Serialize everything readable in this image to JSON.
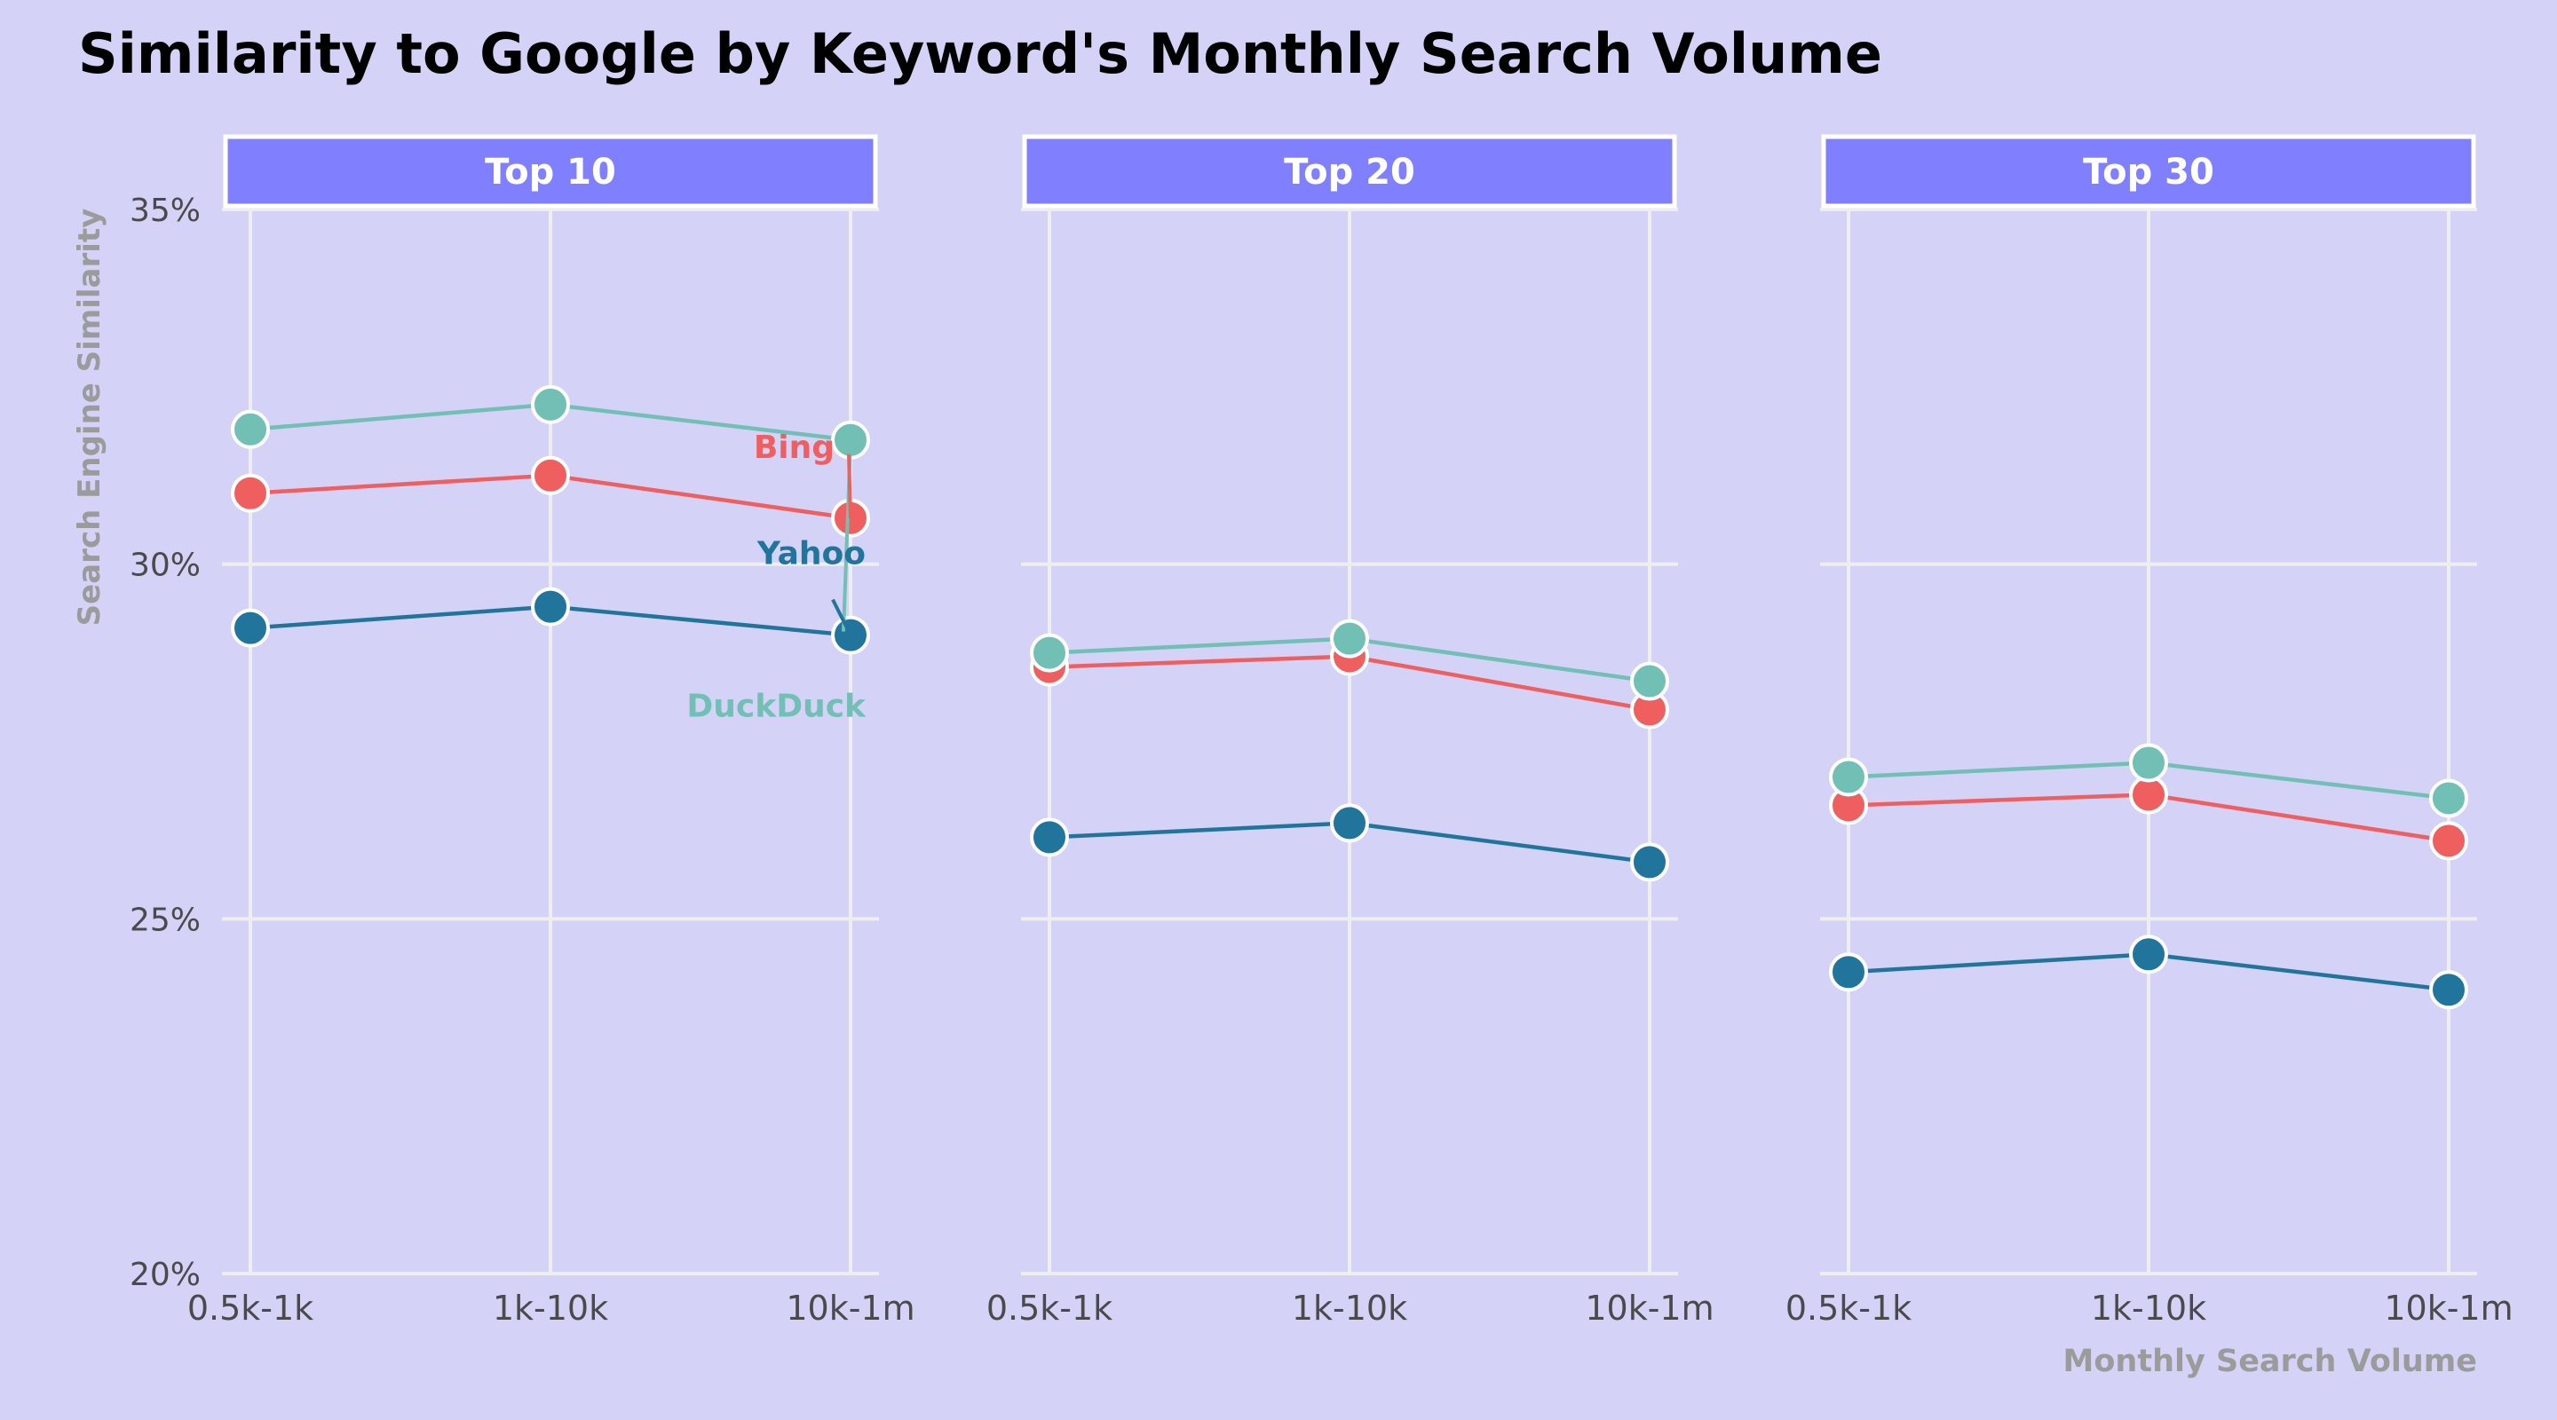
{
  "chart_data": {
    "type": "line",
    "title": "Similarity to Google by Keyword's Monthly Search Volume",
    "xlabel": "Monthly Search Volume",
    "ylabel": "Search Engine Similarity",
    "categories": [
      "0.5k-1k",
      "1k-10k",
      "10k-1m"
    ],
    "ylim": [
      20,
      35
    ],
    "y_ticks": [
      20,
      25,
      30,
      35
    ],
    "y_tick_labels": [
      "20%",
      "25%",
      "30%",
      "35%"
    ],
    "grid": true,
    "legend": "direct labels in first panel",
    "colors": {
      "background": "#d4d2f7",
      "strip": "#8080ff",
      "DuckDuck": "#72bfb6",
      "Bing": "#ef5f5f",
      "Yahoo": "#21749b"
    },
    "panels": [
      {
        "label": "Top 10",
        "series": [
          {
            "name": "DuckDuck",
            "values": [
              31.9,
              32.25,
              31.75
            ]
          },
          {
            "name": "Bing",
            "values": [
              31.0,
              31.25,
              30.65
            ]
          },
          {
            "name": "Yahoo",
            "values": [
              29.1,
              29.4,
              29.0
            ]
          }
        ]
      },
      {
        "label": "Top 20",
        "series": [
          {
            "name": "DuckDuck",
            "values": [
              28.75,
              28.95,
              28.35
            ]
          },
          {
            "name": "Bing",
            "values": [
              28.55,
              28.7,
              27.95
            ]
          },
          {
            "name": "Yahoo",
            "values": [
              26.15,
              26.35,
              25.8
            ]
          }
        ]
      },
      {
        "label": "Top 30",
        "series": [
          {
            "name": "DuckDuck",
            "values": [
              27.0,
              27.2,
              26.7
            ]
          },
          {
            "name": "Bing",
            "values": [
              26.6,
              26.75,
              26.1
            ]
          },
          {
            "name": "Yahoo",
            "values": [
              24.25,
              24.5,
              24.0
            ]
          }
        ]
      }
    ]
  }
}
